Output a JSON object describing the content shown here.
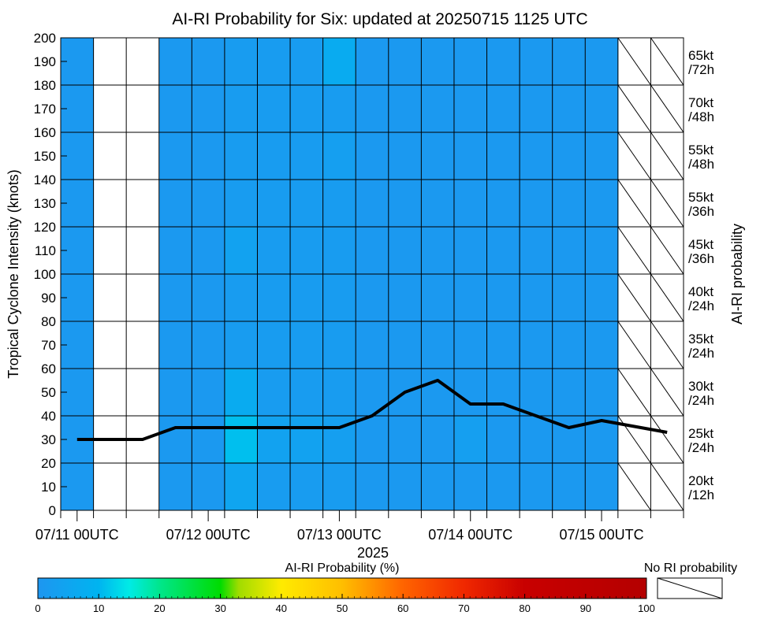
{
  "chart_data": {
    "type": "heatmap",
    "title": "AI-RI Probability for Six: updated at 20250715 1125 UTC",
    "ylabel": "Tropical Cyclone Intensity (knots)",
    "ylabel_right": "AI-RI probability",
    "xlabel": "2025",
    "ylim": [
      0,
      200
    ],
    "y_ticks": [
      0,
      10,
      20,
      30,
      40,
      50,
      60,
      70,
      80,
      90,
      100,
      110,
      120,
      130,
      140,
      150,
      160,
      170,
      180,
      190,
      200
    ],
    "x_tick_labels": [
      "07/11 00UTC",
      "07/12 00UTC",
      "07/13 00UTC",
      "07/14 00UTC",
      "07/15 00UTC"
    ],
    "grid": true,
    "time_columns_per_day": 4,
    "columns": [
      {
        "status": "data",
        "probs": [
          1,
          1,
          1,
          1,
          1,
          1,
          1,
          1,
          1,
          1
        ]
      },
      {
        "status": "empty"
      },
      {
        "status": "empty"
      },
      {
        "status": "data",
        "probs": [
          1,
          1,
          1,
          1,
          1,
          1,
          1,
          1,
          1,
          1
        ]
      },
      {
        "status": "data",
        "probs": [
          1,
          1,
          1,
          1,
          1,
          1,
          1,
          1,
          1,
          1
        ]
      },
      {
        "status": "data",
        "probs": [
          5,
          11,
          7,
          2,
          2,
          4,
          2,
          2,
          2,
          2
        ]
      },
      {
        "status": "data",
        "probs": [
          2,
          4,
          2,
          2,
          2,
          2,
          2,
          2,
          2,
          2
        ]
      },
      {
        "status": "data",
        "probs": [
          2,
          4,
          2,
          2,
          2,
          2,
          2,
          2,
          2,
          2
        ]
      },
      {
        "status": "data",
        "probs": [
          2,
          3,
          2,
          2,
          2,
          2,
          2,
          3,
          2,
          7
        ]
      },
      {
        "status": "data",
        "probs": [
          1,
          1,
          1,
          1,
          1,
          1,
          1,
          1,
          1,
          1
        ]
      },
      {
        "status": "data",
        "probs": [
          1,
          1,
          1,
          1,
          1,
          1,
          1,
          1,
          1,
          1
        ]
      },
      {
        "status": "data",
        "probs": [
          1,
          1,
          1,
          1,
          1,
          1,
          1,
          1,
          1,
          1
        ]
      },
      {
        "status": "data",
        "probs": [
          1,
          3,
          1,
          1,
          1,
          1,
          1,
          1,
          1,
          1
        ]
      },
      {
        "status": "data",
        "probs": [
          1,
          1,
          1,
          1,
          1,
          1,
          1,
          1,
          1,
          1
        ]
      },
      {
        "status": "data",
        "probs": [
          1,
          1,
          1,
          1,
          1,
          1,
          1,
          1,
          1,
          1
        ]
      },
      {
        "status": "data",
        "probs": [
          1,
          1,
          1,
          1,
          1,
          1,
          1,
          1,
          1,
          1
        ]
      },
      {
        "status": "data",
        "probs": [
          1,
          1,
          1,
          1,
          1,
          1,
          1,
          1,
          1,
          1
        ]
      },
      {
        "status": "no_ri"
      },
      {
        "status": "no_ri"
      }
    ],
    "intensity_line": {
      "x": [
        0.5,
        2.5,
        3.5,
        8.5,
        9.5,
        10.5,
        11.5,
        12.5,
        13.5,
        15.5,
        16.5,
        18.5
      ],
      "y": [
        30,
        30,
        35,
        35,
        40,
        50,
        55,
        45,
        45,
        35,
        38,
        33
      ]
    },
    "ri_thresholds": [
      {
        "kt": "20kt",
        "h": "/12h"
      },
      {
        "kt": "25kt",
        "h": "/24h"
      },
      {
        "kt": "30kt",
        "h": "/24h"
      },
      {
        "kt": "35kt",
        "h": "/24h"
      },
      {
        "kt": "40kt",
        "h": "/24h"
      },
      {
        "kt": "45kt",
        "h": "/36h"
      },
      {
        "kt": "55kt",
        "h": "/36h"
      },
      {
        "kt": "55kt",
        "h": "/48h"
      },
      {
        "kt": "70kt",
        "h": "/48h"
      },
      {
        "kt": "65kt",
        "h": "/72h"
      }
    ],
    "colorbar": {
      "label": "AI-RI Probability (%)",
      "range": [
        0,
        100
      ],
      "ticks": [
        0,
        10,
        20,
        30,
        40,
        50,
        60,
        70,
        80,
        90,
        100
      ]
    },
    "no_ri_label": "No RI probability"
  }
}
